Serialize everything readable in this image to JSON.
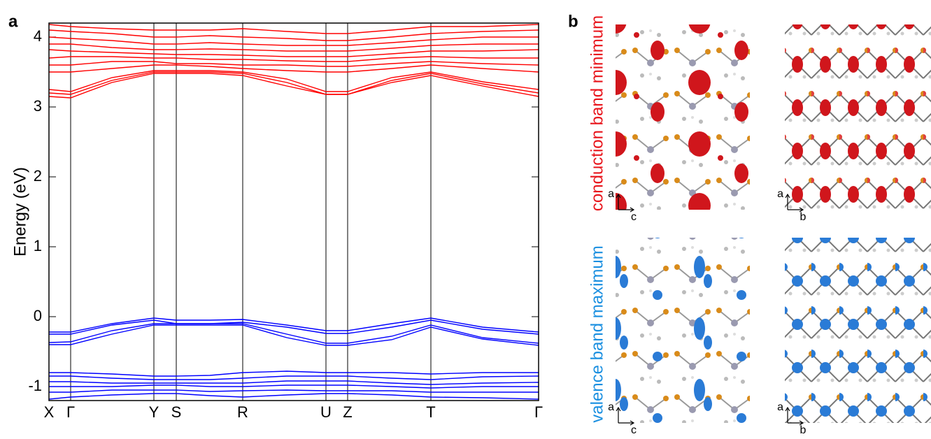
{
  "chart_data": {
    "type": "line",
    "y_label": "Energy (eV)",
    "x": [
      0,
      0.31,
      0.9,
      1.5,
      1.82,
      2.3,
      2.77,
      3.4,
      3.96,
      4.27,
      4.9,
      5.46,
      6.2,
      7.0
    ],
    "xlim": [
      0,
      7.0
    ],
    "xticks": [
      {
        "value": 0,
        "label": "X"
      },
      {
        "value": 0.31,
        "label": "Γ"
      },
      {
        "value": 1.5,
        "label": "Y"
      },
      {
        "value": 1.82,
        "label": "S"
      },
      {
        "value": 2.77,
        "label": "R"
      },
      {
        "value": 3.96,
        "label": "U"
      },
      {
        "value": 4.27,
        "label": "Z"
      },
      {
        "value": 5.46,
        "label": "T"
      },
      {
        "value": 7.0,
        "label": "Γ"
      }
    ],
    "ylim": [
      -1.2,
      4.2
    ],
    "yticks": [
      -1,
      0,
      1,
      2,
      3,
      4
    ],
    "grid": true,
    "series": [
      {
        "color": "#ff0000",
        "values": [
          3.15,
          3.13,
          3.35,
          3.48,
          3.48,
          3.48,
          3.45,
          3.3,
          3.18,
          3.18,
          3.35,
          3.45,
          3.3,
          3.15
        ]
      },
      {
        "color": "#ff0000",
        "values": [
          3.2,
          3.18,
          3.38,
          3.5,
          3.5,
          3.5,
          3.48,
          3.35,
          3.18,
          3.18,
          3.38,
          3.48,
          3.33,
          3.2
        ]
      },
      {
        "color": "#ff0000",
        "values": [
          3.25,
          3.22,
          3.42,
          3.52,
          3.52,
          3.52,
          3.5,
          3.4,
          3.22,
          3.22,
          3.42,
          3.5,
          3.36,
          3.25
        ]
      },
      {
        "color": "#ff0000",
        "values": [
          3.5,
          3.5,
          3.55,
          3.6,
          3.6,
          3.58,
          3.55,
          3.52,
          3.5,
          3.5,
          3.55,
          3.6,
          3.55,
          3.5
        ]
      },
      {
        "color": "#ff0000",
        "values": [
          3.6,
          3.6,
          3.65,
          3.65,
          3.62,
          3.62,
          3.6,
          3.6,
          3.58,
          3.58,
          3.62,
          3.65,
          3.62,
          3.6
        ]
      },
      {
        "color": "#ff0000",
        "values": [
          3.7,
          3.72,
          3.72,
          3.7,
          3.7,
          3.68,
          3.68,
          3.66,
          3.65,
          3.65,
          3.7,
          3.72,
          3.7,
          3.7
        ]
      },
      {
        "color": "#ff0000",
        "values": [
          3.82,
          3.8,
          3.78,
          3.76,
          3.75,
          3.75,
          3.74,
          3.72,
          3.72,
          3.72,
          3.76,
          3.8,
          3.8,
          3.82
        ]
      },
      {
        "color": "#ff0000",
        "values": [
          3.9,
          3.9,
          3.85,
          3.82,
          3.82,
          3.83,
          3.82,
          3.8,
          3.8,
          3.8,
          3.84,
          3.88,
          3.9,
          3.9
        ]
      },
      {
        "color": "#ff0000",
        "values": [
          4.0,
          3.98,
          3.95,
          3.9,
          3.9,
          3.92,
          3.9,
          3.88,
          3.88,
          3.88,
          3.92,
          3.96,
          4.0,
          4.0
        ]
      },
      {
        "color": "#ff0000",
        "values": [
          4.1,
          4.08,
          4.05,
          4.0,
          4.0,
          4.02,
          4.0,
          3.98,
          3.95,
          3.95,
          4.0,
          4.05,
          4.08,
          4.1
        ]
      },
      {
        "color": "#ff0000",
        "values": [
          4.18,
          4.15,
          4.12,
          4.1,
          4.1,
          4.1,
          4.12,
          4.08,
          4.05,
          4.05,
          4.1,
          4.15,
          4.15,
          4.18
        ]
      },
      {
        "color": "#0000ff",
        "values": [
          -0.22,
          -0.22,
          -0.1,
          -0.02,
          -0.05,
          -0.05,
          -0.04,
          -0.12,
          -0.2,
          -0.2,
          -0.1,
          -0.02,
          -0.15,
          -0.22
        ]
      },
      {
        "color": "#0000ff",
        "values": [
          -0.25,
          -0.25,
          -0.12,
          -0.05,
          -0.1,
          -0.1,
          -0.08,
          -0.15,
          -0.24,
          -0.24,
          -0.15,
          -0.05,
          -0.18,
          -0.25
        ]
      },
      {
        "color": "#0000ff",
        "values": [
          -0.37,
          -0.36,
          -0.2,
          -0.1,
          -0.1,
          -0.1,
          -0.1,
          -0.25,
          -0.38,
          -0.38,
          -0.28,
          -0.12,
          -0.3,
          -0.38
        ]
      },
      {
        "color": "#0000ff",
        "values": [
          -0.4,
          -0.4,
          -0.25,
          -0.12,
          -0.12,
          -0.12,
          -0.12,
          -0.3,
          -0.41,
          -0.41,
          -0.33,
          -0.15,
          -0.32,
          -0.41
        ]
      },
      {
        "color": "#0000ff",
        "values": [
          -0.8,
          -0.8,
          -0.82,
          -0.85,
          -0.85,
          -0.84,
          -0.8,
          -0.78,
          -0.8,
          -0.8,
          -0.8,
          -0.82,
          -0.8,
          -0.8
        ]
      },
      {
        "color": "#0000ff",
        "values": [
          -0.85,
          -0.85,
          -0.88,
          -0.9,
          -0.9,
          -0.9,
          -0.88,
          -0.85,
          -0.85,
          -0.85,
          -0.88,
          -0.9,
          -0.86,
          -0.85
        ]
      },
      {
        "color": "#0000ff",
        "values": [
          -0.93,
          -0.93,
          -0.95,
          -0.95,
          -0.95,
          -0.95,
          -0.95,
          -0.92,
          -0.92,
          -0.92,
          -0.95,
          -0.97,
          -0.95,
          -0.94
        ]
      },
      {
        "color": "#0000ff",
        "values": [
          -1.0,
          -1.0,
          -1.0,
          -0.98,
          -0.98,
          -1.0,
          -1.0,
          -0.98,
          -0.98,
          -0.98,
          -1.0,
          -1.02,
          -1.0,
          -1.0
        ]
      },
      {
        "color": "#0000ff",
        "values": [
          -1.08,
          -1.08,
          -1.05,
          -1.05,
          -1.05,
          -1.07,
          -1.06,
          -1.05,
          -1.06,
          -1.06,
          -1.06,
          -1.08,
          -1.08,
          -1.08
        ]
      },
      {
        "color": "#0000ff",
        "values": [
          -1.18,
          -1.15,
          -1.12,
          -1.1,
          -1.1,
          -1.13,
          -1.15,
          -1.12,
          -1.1,
          -1.1,
          -1.12,
          -1.15,
          -1.16,
          -1.18
        ]
      }
    ]
  },
  "panel_labels": [
    "a",
    "b"
  ],
  "structure_rows": [
    "conduction band minimum",
    "valence band maximum"
  ],
  "views": [
    {
      "vertical": "a",
      "horizontal": "c"
    },
    {
      "vertical": "a",
      "horizontal": "b"
    },
    {
      "vertical": "a",
      "horizontal": "c"
    },
    {
      "vertical": "a",
      "horizontal": "b"
    }
  ]
}
